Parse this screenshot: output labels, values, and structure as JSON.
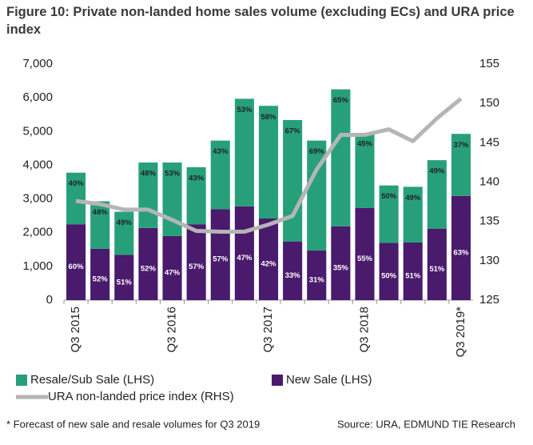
{
  "chart_data": {
    "type": "bar",
    "stacked": true,
    "title": "Figure 10: Private non-landed home sales volume (excluding ECs) and URA price index",
    "footnote": "* Forecast of new sale and resale volumes for Q3 2019",
    "source": "Source: URA, EDMUND TIE Research",
    "categories": [
      "Q3 2015",
      null,
      null,
      null,
      "Q3 2016",
      null,
      null,
      null,
      "Q3 2017",
      null,
      null,
      null,
      "Q3 2018",
      null,
      null,
      null,
      "Q3 2019*"
    ],
    "series": [
      {
        "name": "Resale/Sub Sale (LHS)",
        "type": "bar",
        "color": "#27a07a",
        "values": [
          1530,
          1410,
          1280,
          1940,
          2180,
          1690,
          2030,
          3190,
          3340,
          3600,
          3260,
          4060,
          2230,
          1700,
          1650,
          2030,
          1840
        ],
        "value_labels": [
          "40%",
          "48%",
          "49%",
          "48%",
          "53%",
          "43%",
          "43%",
          "53%",
          "58%",
          "67%",
          "69%",
          "65%",
          "45%",
          "50%",
          "49%",
          "49%",
          "37%"
        ]
      },
      {
        "name": "New Sale (LHS)",
        "type": "bar",
        "color": "#4a1a6c",
        "values": [
          2250,
          1520,
          1340,
          2140,
          1900,
          2250,
          2700,
          2780,
          2420,
          1740,
          1470,
          2190,
          2730,
          1700,
          1710,
          2120,
          3090
        ],
        "value_labels": [
          "60%",
          "52%",
          "51%",
          "52%",
          "47%",
          "57%",
          "57%",
          "47%",
          "42%",
          "33%",
          "31%",
          "35%",
          "55%",
          "50%",
          "51%",
          "51%",
          "63%"
        ]
      },
      {
        "name": "URA non-landed price index (RHS)",
        "type": "line",
        "axis": "y2",
        "color": "#b5b5b5",
        "values": [
          137.6,
          137.2,
          136.5,
          136.5,
          135.2,
          133.8,
          133.7,
          133.7,
          134.6,
          135.7,
          141.6,
          146.0,
          146.0,
          146.7,
          145.2,
          148.1,
          150.6
        ]
      }
    ],
    "ylim": [
      0,
      7000
    ],
    "yticks": [
      0,
      {
        "value": 1000,
        "label": "1,000"
      },
      {
        "value": 2000,
        "label": "2,000"
      },
      {
        "value": 3000,
        "label": "3,000"
      },
      {
        "value": 4000,
        "label": "4,000"
      },
      {
        "value": 5000,
        "label": "5,000"
      },
      {
        "value": 6000,
        "label": "6,000"
      },
      {
        "value": 7000,
        "label": "7,000"
      }
    ],
    "y2lim": [
      125,
      155
    ],
    "y2ticks": [
      125,
      130,
      135,
      140,
      145,
      150,
      155
    ],
    "grid": false
  }
}
